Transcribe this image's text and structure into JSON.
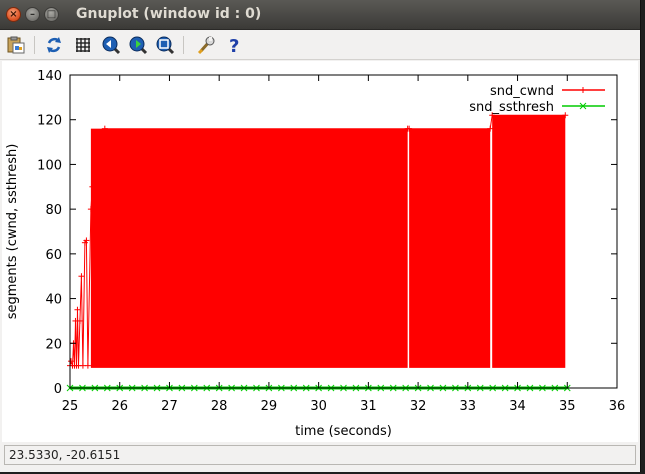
{
  "window": {
    "title": "Gnuplot (window id : 0)",
    "close_glyph": "×",
    "min_glyph": "–",
    "max_glyph": "□"
  },
  "toolbar": {
    "items": [
      {
        "icon": "clipboard-copy-icon"
      },
      {
        "icon": "replot-icon"
      },
      {
        "icon": "grid-icon"
      },
      {
        "icon": "zoom-previous-icon"
      },
      {
        "icon": "zoom-next-icon"
      },
      {
        "icon": "autoscale-icon"
      },
      {
        "icon": "settings-wrench-icon"
      },
      {
        "icon": "help-icon"
      }
    ]
  },
  "colors": {
    "cwnd": "#ff0000",
    "ssthresh": "#00cc00",
    "axis": "#000000"
  },
  "status": {
    "coordinates": "23.5330, -20.6151"
  },
  "chart_data": {
    "type": "line",
    "title": "",
    "xlabel": "time (seconds)",
    "ylabel": "segments (cwnd, ssthresh)",
    "xlim": [
      25,
      36
    ],
    "ylim": [
      0,
      140
    ],
    "xticks": [
      "25",
      "26",
      "27",
      "28",
      "29",
      "30",
      "31",
      "32",
      "33",
      "34",
      "35",
      "36"
    ],
    "yticks": [
      "0",
      "20",
      "40",
      "60",
      "80",
      "100",
      "120",
      "140"
    ],
    "legend_position": "top-right",
    "grid": false,
    "series": [
      {
        "name": "snd_cwnd",
        "color": "#ff0000",
        "marker": "+",
        "points": [
          [
            25.0,
            10
          ],
          [
            25.02,
            12
          ],
          [
            25.05,
            10
          ],
          [
            25.07,
            20
          ],
          [
            25.09,
            10
          ],
          [
            25.11,
            30
          ],
          [
            25.13,
            10
          ],
          [
            25.15,
            35
          ],
          [
            25.17,
            10
          ],
          [
            25.2,
            30
          ],
          [
            25.23,
            50
          ],
          [
            25.26,
            10
          ],
          [
            25.3,
            65
          ],
          [
            25.33,
            66
          ],
          [
            25.36,
            10
          ],
          [
            25.42,
            80
          ],
          [
            25.45,
            90
          ],
          [
            25.5,
            96
          ],
          [
            25.55,
            105
          ],
          [
            25.6,
            113
          ],
          [
            25.7,
            116
          ],
          [
            31.79,
            116
          ],
          [
            31.82,
            116
          ],
          [
            33.45,
            116
          ],
          [
            33.49,
            122
          ],
          [
            34.96,
            122
          ]
        ],
        "band": [
          {
            "x_start": 25.42,
            "x_end": 31.79,
            "low": 9,
            "high": 116
          },
          {
            "x_start": 31.82,
            "x_end": 33.45,
            "low": 9,
            "high": 116
          },
          {
            "x_start": 33.49,
            "x_end": 34.96,
            "low": 9,
            "high": 122
          }
        ]
      },
      {
        "name": "snd_ssthresh",
        "color": "#00cc00",
        "marker": "x",
        "points": [
          [
            25.0,
            0
          ],
          [
            35.0,
            0
          ]
        ]
      }
    ]
  }
}
